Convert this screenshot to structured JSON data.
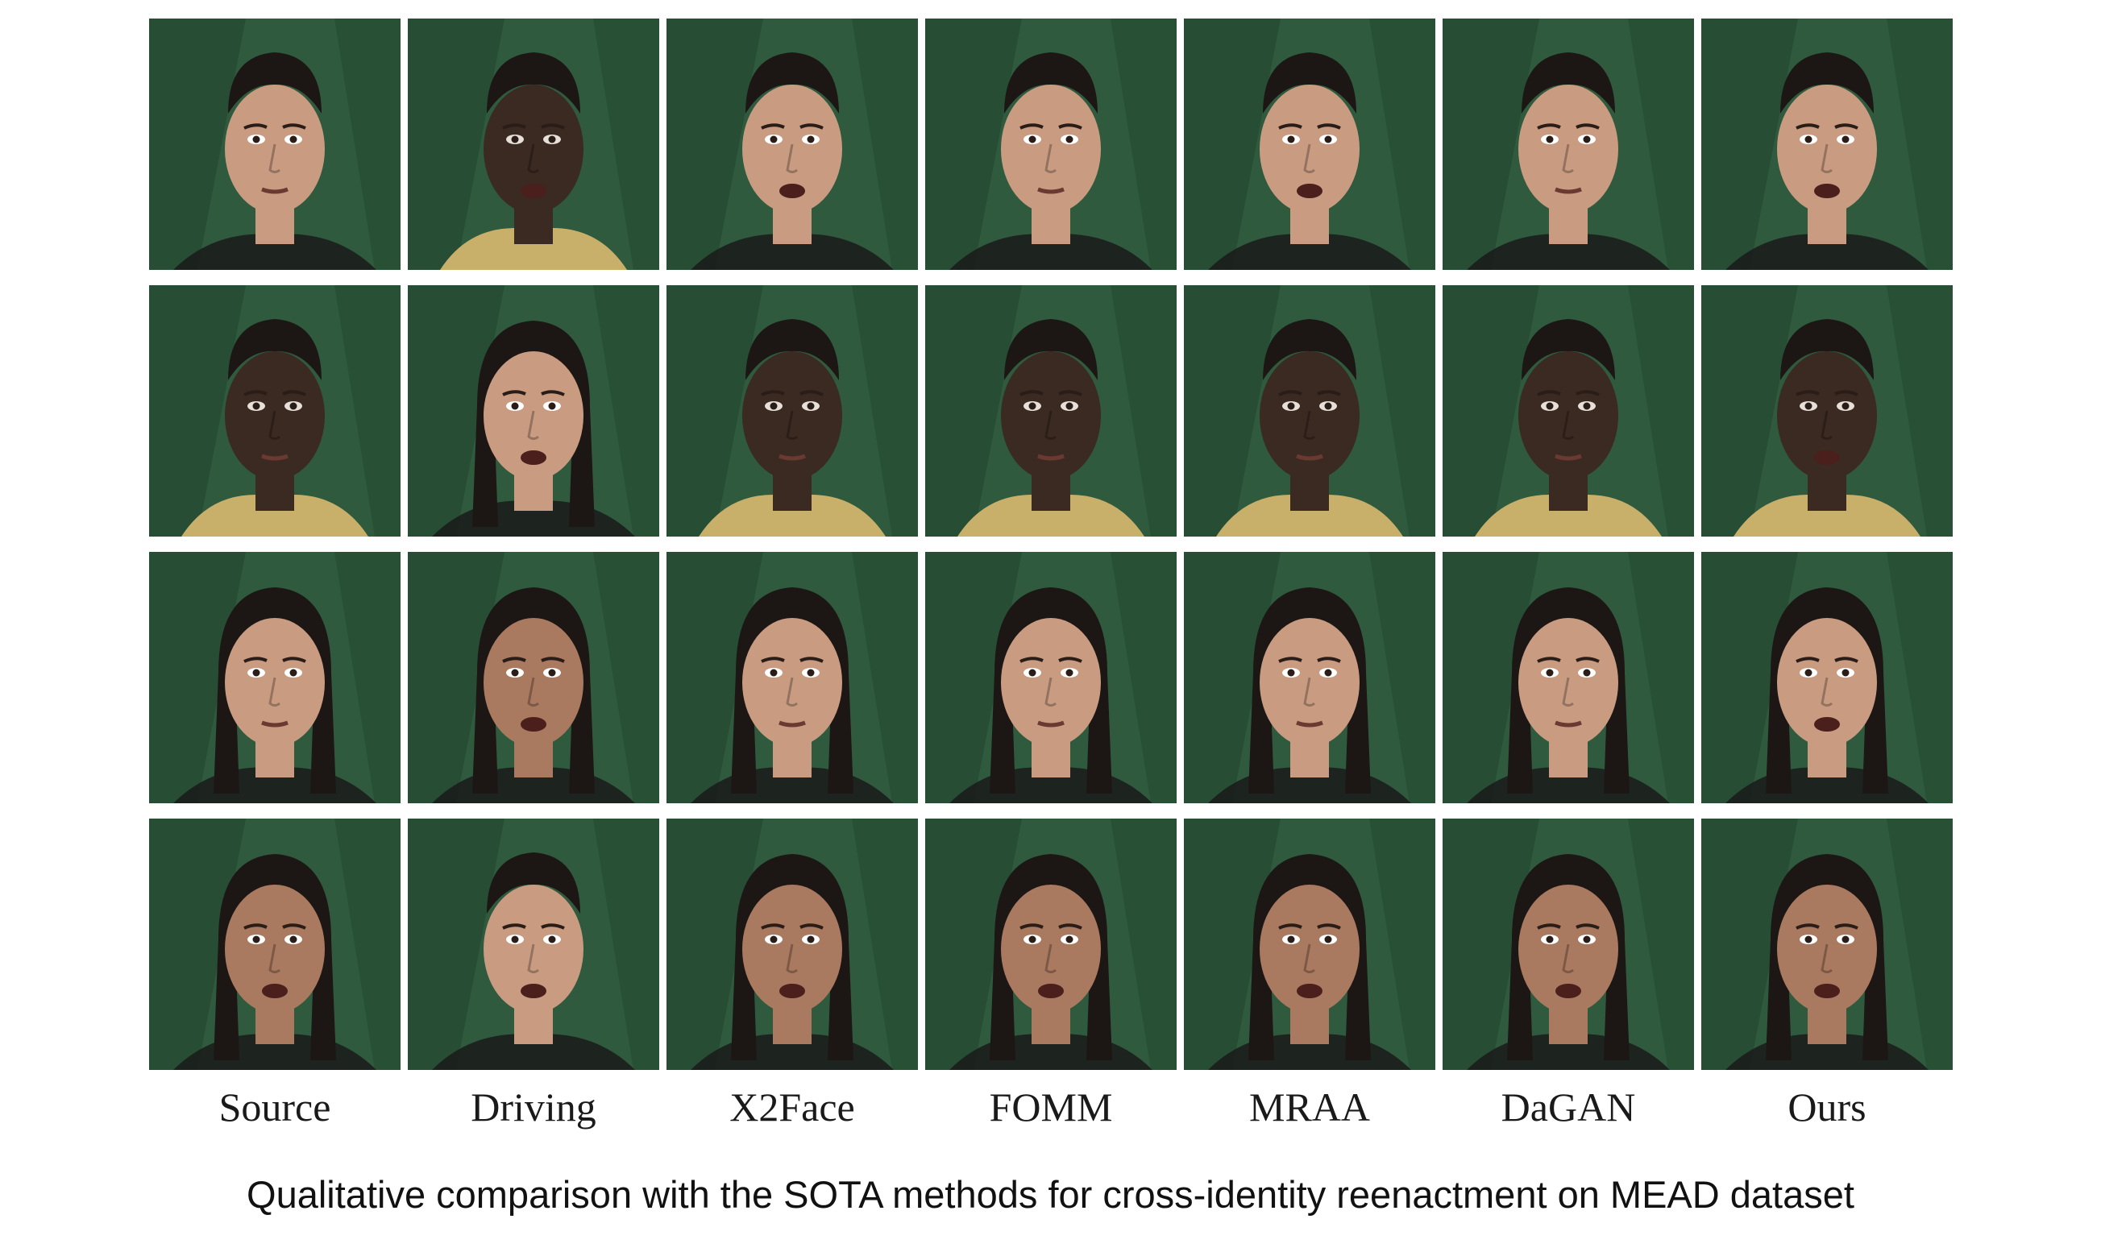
{
  "columns": [
    "Source",
    "Driving",
    "X2Face",
    "FOMM",
    "MRAA",
    "DaGAN",
    "Ours"
  ],
  "caption": "Qualitative comparison with the SOTA methods for cross-identity reenactment on MEAD dataset",
  "colors": {
    "background_green": "#2f5a3e",
    "background_green_dark": "#1f4029",
    "skin_light": "#c99c82",
    "skin_medium": "#a97a60",
    "skin_dark": "#3b2a22",
    "hair": "#1c1714"
  },
  "rows": [
    {
      "tiles": [
        {
          "subject": "man-light",
          "mouth": "closed"
        },
        {
          "subject": "man-dark",
          "mouth": "open"
        },
        {
          "subject": "man-light",
          "mouth": "open"
        },
        {
          "subject": "man-light",
          "mouth": "closed"
        },
        {
          "subject": "man-light",
          "mouth": "open"
        },
        {
          "subject": "man-light",
          "mouth": "closed"
        },
        {
          "subject": "man-light",
          "mouth": "open"
        }
      ]
    },
    {
      "tiles": [
        {
          "subject": "man-dark",
          "mouth": "closed"
        },
        {
          "subject": "woman-young",
          "mouth": "open"
        },
        {
          "subject": "man-dark",
          "mouth": "closed"
        },
        {
          "subject": "man-dark",
          "mouth": "closed"
        },
        {
          "subject": "man-dark",
          "mouth": "closed"
        },
        {
          "subject": "man-dark",
          "mouth": "closed"
        },
        {
          "subject": "man-dark",
          "mouth": "open"
        }
      ]
    },
    {
      "tiles": [
        {
          "subject": "woman-young",
          "mouth": "closed"
        },
        {
          "subject": "woman-older",
          "mouth": "open"
        },
        {
          "subject": "woman-young",
          "mouth": "closed"
        },
        {
          "subject": "woman-young",
          "mouth": "closed"
        },
        {
          "subject": "woman-young",
          "mouth": "closed"
        },
        {
          "subject": "woman-young",
          "mouth": "closed"
        },
        {
          "subject": "woman-young",
          "mouth": "open"
        }
      ]
    },
    {
      "tiles": [
        {
          "subject": "woman-older",
          "mouth": "open"
        },
        {
          "subject": "man-light",
          "mouth": "open"
        },
        {
          "subject": "woman-older",
          "mouth": "open"
        },
        {
          "subject": "woman-older",
          "mouth": "open"
        },
        {
          "subject": "woman-older",
          "mouth": "open"
        },
        {
          "subject": "woman-older",
          "mouth": "open"
        },
        {
          "subject": "woman-older",
          "mouth": "open"
        }
      ]
    }
  ]
}
